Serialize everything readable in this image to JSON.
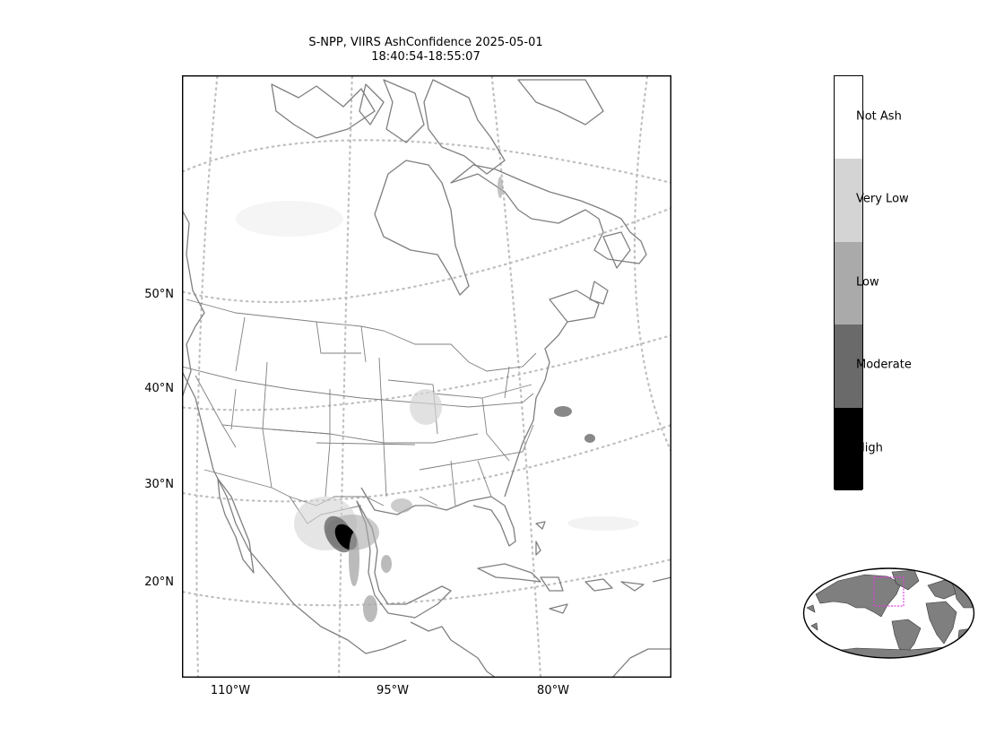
{
  "title": {
    "line1": "S-NPP, VIIRS AshConfidence 2025-05-01",
    "line2": "18:40:54-18:55:07"
  },
  "map": {
    "lat_labels": [
      "50°N",
      "40°N",
      "30°N",
      "20°N"
    ],
    "lon_labels": [
      "110°W",
      "95°W",
      "80°W"
    ],
    "coastline_color": "#7f7f7f",
    "graticule_color": "#bfbfbf"
  },
  "colorbar": {
    "categories": [
      {
        "label": "Not Ash",
        "color": "#ffffff"
      },
      {
        "label": "Very Low",
        "color": "#d4d4d4"
      },
      {
        "label": "Low",
        "color": "#aaaaaa"
      },
      {
        "label": "Moderate",
        "color": "#6a6a6a"
      },
      {
        "label": "High",
        "color": "#000000"
      }
    ]
  },
  "inset": {
    "land_color": "#7f7f7f",
    "region_box_color": "#e040e0"
  }
}
